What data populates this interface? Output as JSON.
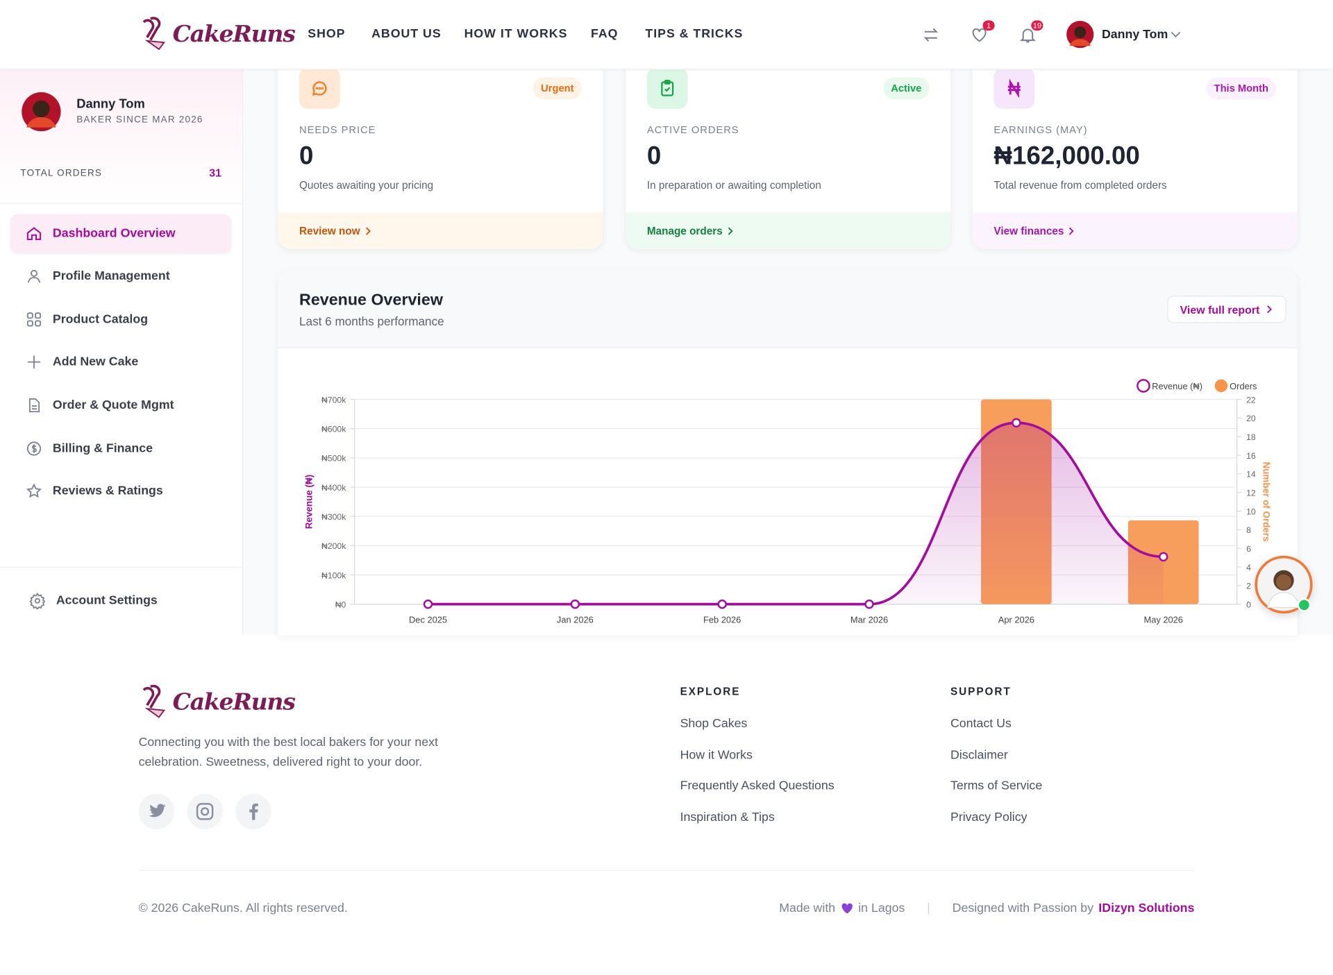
{
  "header": {
    "logo": "CakeRuns",
    "nav": [
      "SHOP",
      "ABOUT US",
      "HOW IT WORKS",
      "FAQ",
      "TIPS & TRICKS"
    ],
    "wishlist_count": 1,
    "notification_count": 19,
    "user": "Danny Tom"
  },
  "sidebar": {
    "name": "Danny Tom",
    "since": "BAKER SINCE MAR 2026",
    "total_orders_label": "TOTAL ORDERS",
    "total_orders": 31,
    "menu": [
      "Dashboard Overview",
      "Profile Management",
      "Product Catalog",
      "Add New Cake",
      "Order & Quote Mgmt",
      "Billing & Finance",
      "Reviews & Ratings"
    ],
    "settings": "Account Settings"
  },
  "cards": [
    {
      "badge": "Urgent",
      "label": "NEEDS PRICE",
      "value": 0,
      "description": "Quotes awaiting your pricing",
      "link": "Review now"
    },
    {
      "badge": "Active",
      "label": "ACTIVE ORDERS",
      "value": 0,
      "description": "In preparation or awaiting completion",
      "link": "Manage orders"
    },
    {
      "badge": "This Month",
      "label": "EARNINGS (MAY)",
      "value": "₦162,000.00",
      "description": "Total revenue from completed orders",
      "link": "View finances"
    }
  ],
  "report_button": "View full report",
  "chart_data": {
    "type": "combo",
    "title": "Revenue Overview",
    "subtitle": "Last 6 months performance",
    "categories": [
      "Dec 2025",
      "Jan 2026",
      "Feb 2026",
      "Mar 2026",
      "Apr 2026",
      "May 2026"
    ],
    "series": [
      {
        "name": "Revenue (₦)",
        "type": "line",
        "color": "#a30d9e",
        "values": [
          0,
          0,
          0,
          0,
          620000,
          162000
        ]
      },
      {
        "name": "Orders",
        "type": "bar",
        "axis": "y2",
        "color": "#f7944a",
        "values": [
          0,
          0,
          0,
          0,
          22,
          9
        ]
      }
    ],
    "ylabel": "Revenue (₦)",
    "y2label": "Number of Orders",
    "ylim": [
      0,
      700000
    ],
    "yticks": [
      {
        "value": 0,
        "label": "₦0"
      },
      {
        "value": 100000,
        "label": "₦100k"
      },
      {
        "value": 200000,
        "label": "₦200k"
      },
      {
        "value": 300000,
        "label": "₦300k"
      },
      {
        "value": 400000,
        "label": "₦400k"
      },
      {
        "value": 500000,
        "label": "₦500k"
      },
      {
        "value": 600000,
        "label": "₦600k"
      },
      {
        "value": 700000,
        "label": "₦700k"
      }
    ],
    "y2lim": [
      0,
      22
    ],
    "y2ticks": [
      0,
      2,
      4,
      6,
      8,
      10,
      12,
      14,
      16,
      18,
      20,
      22
    ],
    "grid": true,
    "legend": "top-right"
  },
  "footer": {
    "logo": "CakeRuns",
    "tagline": [
      "Connecting you with the best local bakers for your next",
      "celebration. Sweetness, delivered right to your door."
    ],
    "explore_title": "EXPLORE",
    "explore": [
      "Shop Cakes",
      "How it Works",
      "Frequently Asked Questions",
      "Inspiration & Tips"
    ],
    "support_title": "SUPPORT",
    "support": [
      "Contact Us",
      "Disclaimer",
      "Terms of Service",
      "Privacy Policy"
    ],
    "copyright": "© 2026 CakeRuns. All rights reserved.",
    "made_with": "Made with",
    "location": "in Lagos",
    "designed_by": "Designed with Passion by",
    "designer": "IDizyn Solutions"
  }
}
